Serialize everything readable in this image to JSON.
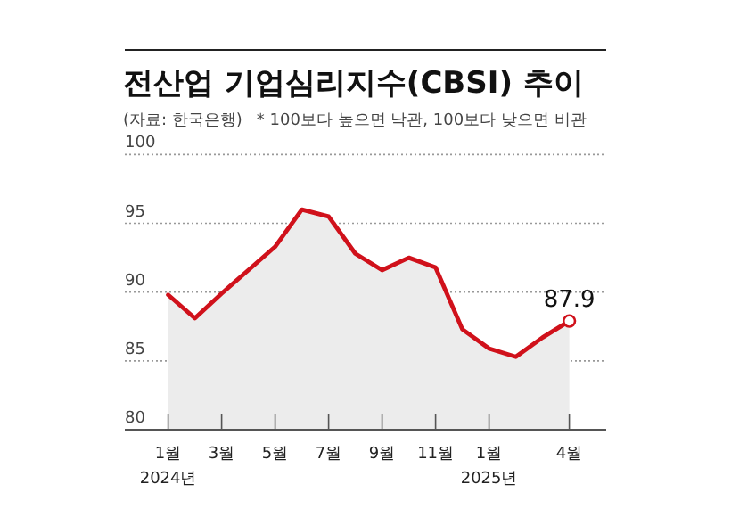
{
  "chart_data": {
    "type": "area",
    "title": "전산업 기업심리지수(CBSI) 추이",
    "annotations": [
      "(자료: 한국은행)",
      "* 100보다 높으면 낙관, 100보다 낮으면 비관"
    ],
    "categories": [
      "1월\n2024년",
      null,
      "3월",
      null,
      "5월",
      null,
      "7월",
      null,
      "9월",
      null,
      "11월",
      null,
      "1월\n2025년",
      null,
      null,
      "4월"
    ],
    "series": [
      {
        "color": "#d0111b",
        "values": [
          89.8,
          88.1,
          89.9,
          91.6,
          93.3,
          96.0,
          95.5,
          92.8,
          91.6,
          92.5,
          91.8,
          87.3,
          85.9,
          85.3,
          86.7,
          87.9
        ],
        "value_labels": [
          null,
          null,
          null,
          null,
          null,
          null,
          null,
          null,
          null,
          null,
          null,
          null,
          null,
          null,
          null,
          "87.9"
        ]
      }
    ],
    "ylim": [
      80,
      100
    ],
    "yticks": [
      80,
      85,
      90,
      95,
      100
    ],
    "grid": "y"
  }
}
